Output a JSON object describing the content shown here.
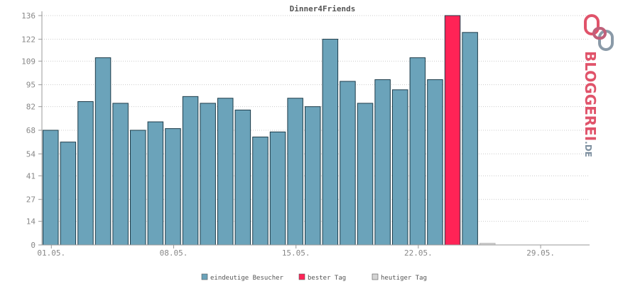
{
  "chart_data": {
    "type": "bar",
    "title": "Dinner4Friends",
    "x_tick_labels": [
      "01.05.",
      "08.05.",
      "15.05.",
      "22.05.",
      "29.05."
    ],
    "y_ticks": [
      0,
      14,
      27,
      41,
      54,
      68,
      82,
      95,
      109,
      122,
      136
    ],
    "ylim": [
      0,
      136
    ],
    "days": [
      "01.05.",
      "02.05.",
      "03.05.",
      "04.05.",
      "05.05.",
      "06.05.",
      "07.05.",
      "08.05.",
      "09.05.",
      "10.05.",
      "11.05.",
      "12.05.",
      "13.05.",
      "14.05.",
      "15.05.",
      "16.05.",
      "17.05.",
      "18.05.",
      "19.05.",
      "20.05.",
      "21.05.",
      "22.05.",
      "23.05.",
      "24.05.",
      "25.05.",
      "26.05.",
      "27.05.",
      "28.05.",
      "29.05.",
      "30.05.",
      "31.05."
    ],
    "series": [
      {
        "name": "eindeutige Besucher",
        "color": "#6ba3ba",
        "values": [
          68,
          61,
          85,
          111,
          84,
          68,
          73,
          69,
          88,
          84,
          87,
          80,
          64,
          67,
          87,
          82,
          122,
          97,
          84,
          98,
          92,
          111,
          98,
          136,
          126,
          1,
          0,
          0,
          0,
          0,
          0
        ]
      }
    ],
    "best_day_index": 23,
    "today_index": 25,
    "grid": true,
    "legend": {
      "position": "bottom",
      "items": [
        {
          "label": "eindeutige Besucher",
          "color": "#6ba3ba"
        },
        {
          "label": "bester Tag",
          "color": "#ff2356"
        },
        {
          "label": "heutiger Tag",
          "color": "#d4d4d4"
        }
      ]
    },
    "colors": {
      "bar": "#6ba3ba",
      "best": "#ff2356",
      "today": "#d4d4d4",
      "bar_stroke": "#1e3c4a",
      "grid": "#cccccc",
      "axis": "#999999"
    }
  },
  "logo": {
    "text": "BLOGGEREI",
    "suffix": ".DE"
  }
}
